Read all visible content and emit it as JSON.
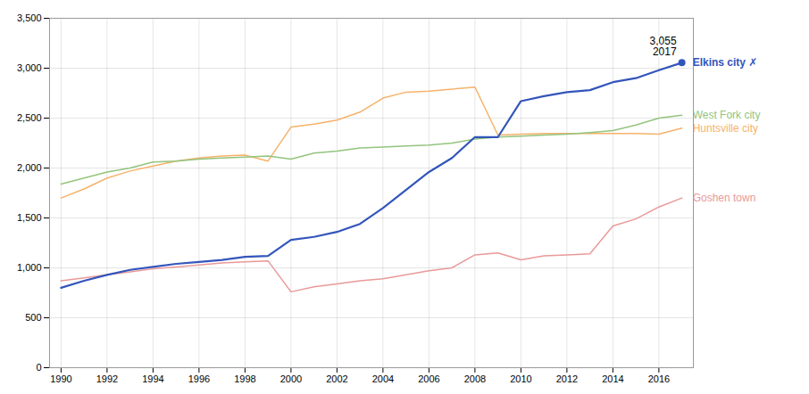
{
  "chart_data": {
    "type": "line",
    "x": [
      1990,
      1991,
      1992,
      1993,
      1994,
      1995,
      1996,
      1997,
      1998,
      1999,
      2000,
      2001,
      2002,
      2003,
      2004,
      2005,
      2006,
      2007,
      2008,
      2009,
      2010,
      2011,
      2012,
      2013,
      2014,
      2015,
      2016,
      2017
    ],
    "series": [
      {
        "name": "Huntsville city",
        "color": "#f6b26b",
        "values": [
          1700,
          1790,
          1900,
          1970,
          2020,
          2070,
          2100,
          2120,
          2130,
          2070,
          2410,
          2440,
          2480,
          2560,
          2700,
          2760,
          2770,
          2790,
          2810,
          2330,
          2340,
          2345,
          2345,
          2345,
          2345,
          2345,
          2340,
          2400
        ]
      },
      {
        "name": "West Fork city",
        "color": "#93c47d",
        "values": [
          1840,
          1900,
          1960,
          2000,
          2060,
          2070,
          2090,
          2100,
          2110,
          2120,
          2090,
          2150,
          2170,
          2200,
          2210,
          2220,
          2230,
          2250,
          2290,
          2310,
          2320,
          2330,
          2340,
          2355,
          2375,
          2430,
          2500,
          2530
        ]
      },
      {
        "name": "Goshen town",
        "color": "#ea9999",
        "values": [
          870,
          900,
          930,
          960,
          990,
          1010,
          1030,
          1050,
          1060,
          1070,
          760,
          810,
          840,
          870,
          890,
          930,
          970,
          1000,
          1130,
          1150,
          1080,
          1120,
          1130,
          1140,
          1420,
          1490,
          1610,
          1700
        ]
      },
      {
        "name": "Elkins city ✗",
        "color": "#3355bb",
        "values": [
          800,
          870,
          930,
          980,
          1010,
          1040,
          1060,
          1080,
          1110,
          1120,
          1280,
          1310,
          1360,
          1440,
          1600,
          1780,
          1960,
          2100,
          2310,
          2310,
          2670,
          2720,
          2760,
          2780,
          2860,
          2900,
          2980,
          3055
        ]
      }
    ],
    "annotations": [
      {
        "text": "3,055\n2017",
        "x": 2017,
        "y": 3055,
        "color": "#3355bb"
      }
    ],
    "xlim": [
      1989.5,
      2017.5
    ],
    "xticks": [
      1990,
      1992,
      1994,
      1996,
      1998,
      2000,
      2002,
      2004,
      2006,
      2008,
      2010,
      2012,
      2014,
      2016
    ],
    "ylim": [
      0,
      3500
    ],
    "yticks": [
      0,
      500,
      {
        "value": 1000,
        "label": "1,000"
      },
      {
        "value": 1500,
        "label": "1,500"
      },
      {
        "value": 2000,
        "label": "2,000"
      },
      {
        "value": 2500,
        "label": "2,500"
      },
      {
        "value": 3000,
        "label": "3,000"
      },
      {
        "value": 3500,
        "label": "3,500"
      }
    ],
    "grid": true,
    "legend": "right"
  }
}
